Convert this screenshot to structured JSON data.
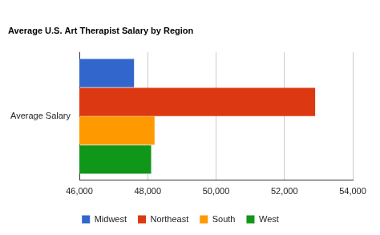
{
  "chart_data": {
    "type": "bar",
    "orientation": "horizontal",
    "title": "Average U.S. Art Therapist Salary by Region",
    "categories": [
      "Average Salary"
    ],
    "series": [
      {
        "name": "Midwest",
        "color": "#3366cc",
        "values": [
          47600
        ]
      },
      {
        "name": "Northeast",
        "color": "#dc3912",
        "values": [
          52900
        ]
      },
      {
        "name": "South",
        "color": "#ff9900",
        "values": [
          48200
        ]
      },
      {
        "name": "West",
        "color": "#109618",
        "values": [
          48100
        ]
      }
    ],
    "xlim": [
      46000,
      54000
    ],
    "xticks": [
      {
        "value": 46000,
        "label": "46,000"
      },
      {
        "value": 48000,
        "label": "48,000"
      },
      {
        "value": 50000,
        "label": "50,000"
      },
      {
        "value": 52000,
        "label": "52,000"
      },
      {
        "value": 54000,
        "label": "54,000"
      }
    ],
    "grid": true,
    "legend": "bottom"
  }
}
